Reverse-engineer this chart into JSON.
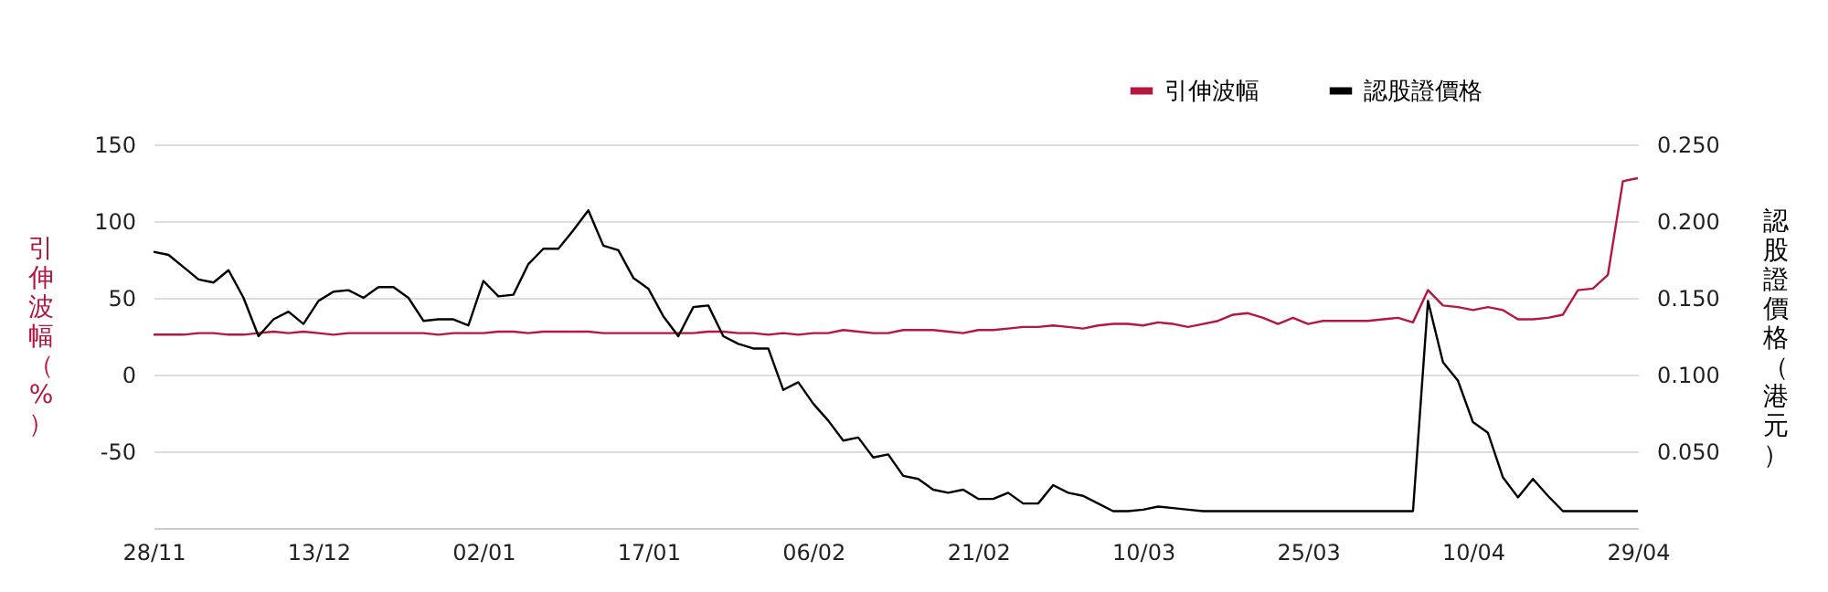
{
  "chart_data": {
    "type": "line",
    "categories": [
      "28/11",
      null,
      null,
      null,
      null,
      null,
      null,
      null,
      null,
      null,
      null,
      "13/12",
      null,
      null,
      null,
      null,
      null,
      null,
      null,
      null,
      null,
      null,
      "02/01",
      null,
      null,
      null,
      null,
      null,
      null,
      null,
      null,
      null,
      null,
      "17/01",
      null,
      null,
      null,
      null,
      null,
      null,
      null,
      null,
      null,
      null,
      "06/02",
      null,
      null,
      null,
      null,
      null,
      null,
      null,
      null,
      null,
      null,
      "21/02",
      null,
      null,
      null,
      null,
      null,
      null,
      null,
      null,
      null,
      null,
      "10/03",
      null,
      null,
      null,
      null,
      null,
      null,
      null,
      null,
      null,
      null,
      "25/03",
      null,
      null,
      null,
      null,
      null,
      null,
      null,
      null,
      null,
      null,
      "10/04",
      null,
      null,
      null,
      null,
      null,
      null,
      null,
      null,
      null,
      null,
      "29/04"
    ],
    "series": [
      {
        "name": "引伸波幅",
        "color": "#b5173f",
        "values": [
          26,
          26,
          26,
          27,
          27,
          26,
          26,
          27,
          28,
          27,
          28,
          27,
          26,
          27,
          27,
          27,
          27,
          27,
          27,
          26,
          27,
          27,
          27,
          28,
          28,
          27,
          28,
          28,
          28,
          28,
          27,
          27,
          27,
          27,
          27,
          27,
          27,
          28,
          28,
          27,
          27,
          26,
          27,
          26,
          27,
          27,
          29,
          28,
          27,
          27,
          29,
          29,
          29,
          28,
          27,
          29,
          29,
          30,
          31,
          31,
          32,
          31,
          30,
          32,
          33,
          33,
          32,
          34,
          33,
          31,
          33,
          35,
          39,
          40,
          37,
          33,
          37,
          33,
          35,
          35,
          35,
          35,
          36,
          37,
          34,
          55,
          45,
          44,
          42,
          44,
          42,
          36,
          36,
          37,
          39,
          55,
          56,
          65,
          126,
          128
        ]
      },
      {
        "name": "認股證價格",
        "color": "#000000",
        "axis": "y2",
        "values": [
          0.18,
          0.178,
          0.17,
          0.162,
          0.16,
          0.168,
          0.15,
          0.125,
          0.136,
          0.141,
          0.133,
          0.148,
          0.154,
          0.155,
          0.15,
          0.157,
          0.157,
          0.15,
          0.135,
          0.136,
          0.136,
          0.132,
          0.161,
          0.151,
          0.152,
          0.172,
          0.182,
          0.182,
          0.194,
          0.207,
          0.184,
          0.181,
          0.163,
          0.156,
          0.138,
          0.125,
          0.144,
          0.145,
          0.125,
          0.12,
          0.117,
          0.117,
          0.09,
          0.095,
          0.081,
          0.07,
          0.057,
          0.059,
          0.046,
          0.048,
          0.034,
          0.032,
          0.025,
          0.023,
          0.025,
          0.019,
          0.019,
          0.023,
          0.016,
          0.016,
          0.028,
          0.023,
          0.021,
          0.016,
          0.011,
          0.011,
          0.012,
          0.014,
          0.013,
          0.012,
          0.011,
          0.011,
          0.011,
          0.011,
          0.011,
          0.011,
          0.011,
          0.011,
          0.011,
          0.011,
          0.011,
          0.011,
          0.011,
          0.011,
          0.011,
          0.148,
          0.108,
          0.096,
          0.069,
          0.062,
          0.033,
          0.02,
          0.032,
          0.021,
          0.011,
          0.011,
          0.011,
          0.011,
          0.011,
          0.011
        ]
      }
    ],
    "ylabel": "引伸波幅（%）",
    "y2label": "認股證價格（港元）",
    "ylim": [
      -100,
      150
    ],
    "yticks": [
      -50,
      0,
      50,
      100,
      150
    ],
    "y2lim": [
      0,
      0.25
    ],
    "y2ticks": [
      {
        "value": 0.05,
        "label": "0.050"
      },
      {
        "value": 0.1,
        "label": "0.100"
      },
      {
        "value": 0.15,
        "label": "0.150"
      },
      {
        "value": 0.2,
        "label": "0.200"
      },
      {
        "value": 0.25,
        "label": "0.250"
      }
    ],
    "grid": "y",
    "legend": "top right",
    "marker": "none",
    "line_style": "solid"
  }
}
